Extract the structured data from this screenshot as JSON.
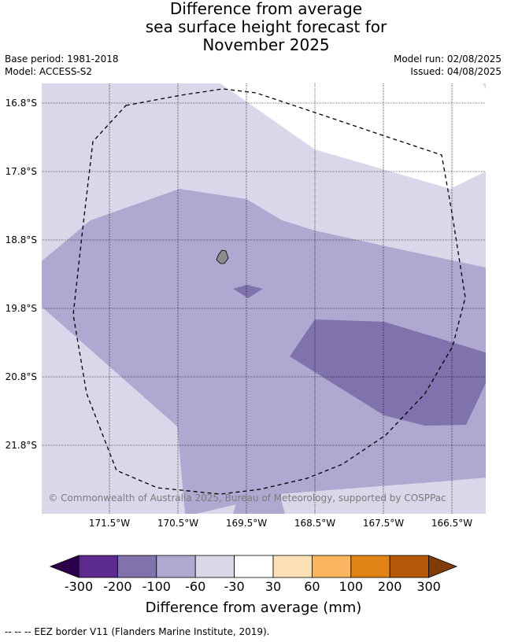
{
  "title": {
    "line1": "Difference from average",
    "line2": "sea surface height forecast for",
    "line3": "November 2025"
  },
  "base_period": "Base period: 1981-2018",
  "model": "Model: ACCESS-S2",
  "model_run": "Model run: 02/08/2025",
  "issued": "Issued: 04/08/2025",
  "map": {
    "latitudes": [
      "16.8°S",
      "17.8°S",
      "18.8°S",
      "19.8°S",
      "20.8°S",
      "21.8°S"
    ],
    "longitudes": [
      "171.5°W",
      "170.5°W",
      "169.5°W",
      "168.5°W",
      "167.5°W",
      "166.5°W"
    ],
    "copyright": "© Commonwealth of Australia 2025, Bureau of Meteorology, supported by COSPPac",
    "colors": {
      "class_m300_m200": "#5b2a8c",
      "class_m200_m100": "#8072ac",
      "class_m100_m60": "#afa8d0",
      "class_m60_m30": "#d8d8ea",
      "class_m30_30": "#ffffff",
      "land": "#8c8c8c"
    }
  },
  "colorbar": {
    "ticks": [
      "-300",
      "-200",
      "-100",
      "-60",
      "-30",
      "30",
      "60",
      "100",
      "200",
      "300"
    ],
    "colors": [
      "#5b2a8c",
      "#8072ac",
      "#afa8d0",
      "#d8d8ea",
      "#ffffff",
      "#fde0b6",
      "#fbb45f",
      "#e08214",
      "#b35806"
    ],
    "under_color": "#2d004b",
    "over_color": "#7f3b08",
    "label": "Difference from average (mm)"
  },
  "footer": "--  --  -- EEZ border V11 (Flanders Marine Institute, 2019)."
}
